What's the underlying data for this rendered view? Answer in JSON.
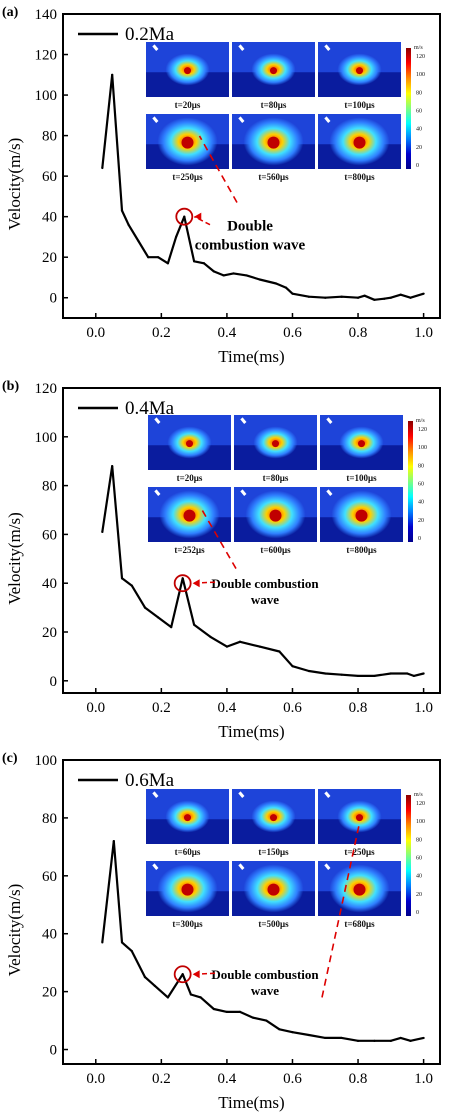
{
  "chart_data": [
    {
      "type": "line",
      "panel_label": "(a)",
      "legend": "0.2Ma",
      "xlabel": "Time(ms)",
      "ylabel": "Velocity(m/s)",
      "xlim": [
        -0.1,
        1.05
      ],
      "ylim": [
        -10,
        140
      ],
      "xticks": [
        0.0,
        0.2,
        0.4,
        0.6,
        0.8,
        1.0
      ],
      "xtick_labels": [
        "0.0",
        "0.2",
        "0.4",
        "0.6",
        "0.8",
        "1.0"
      ],
      "yticks": [
        0,
        20,
        40,
        60,
        80,
        100,
        120,
        140
      ],
      "ytick_labels": [
        "0",
        "20",
        "40",
        "60",
        "80",
        "100",
        "120",
        "140"
      ],
      "series": [
        {
          "name": "0.2Ma",
          "x": [
            0.02,
            0.05,
            0.08,
            0.1,
            0.13,
            0.16,
            0.19,
            0.22,
            0.245,
            0.27,
            0.3,
            0.33,
            0.36,
            0.39,
            0.42,
            0.46,
            0.5,
            0.55,
            0.58,
            0.6,
            0.65,
            0.7,
            0.75,
            0.8,
            0.82,
            0.85,
            0.88,
            0.9,
            0.93,
            0.96,
            1.0
          ],
          "y": [
            64,
            110,
            43,
            36,
            28,
            20,
            20,
            17,
            30,
            40,
            18,
            17,
            13,
            11,
            12,
            11,
            9,
            7,
            5,
            2,
            0.5,
            0,
            0.5,
            0,
            1,
            -1,
            -0.5,
            0,
            1.5,
            0,
            2
          ]
        }
      ],
      "annotation": [
        "Double",
        "combustion wave"
      ],
      "peak_marker": {
        "x": 0.27,
        "y": 40
      },
      "inset": {
        "time_labels": [
          "t=20μs",
          "t=80μs",
          "t=100μs",
          "t=250μs",
          "t=560μs",
          "t=800μs"
        ],
        "colorbar_unit": "m/s",
        "colorbar_ticks": [
          "120",
          "100",
          "80",
          "60",
          "40",
          "20",
          "0"
        ],
        "colorbar_colors": [
          "#8b0000",
          "#ff0000",
          "#ff8c00",
          "#ffff00",
          "#7fff7f",
          "#00ffff",
          "#0080ff",
          "#0000cd",
          "#00008b"
        ]
      }
    },
    {
      "type": "line",
      "panel_label": "(b)",
      "legend": "0.4Ma",
      "xlabel": "Time(ms)",
      "ylabel": "Velocity(m/s)",
      "xlim": [
        -0.1,
        1.05
      ],
      "ylim": [
        -5,
        120
      ],
      "xticks": [
        0.0,
        0.2,
        0.4,
        0.6,
        0.8,
        1.0
      ],
      "xtick_labels": [
        "0.0",
        "0.2",
        "0.4",
        "0.6",
        "0.8",
        "1.0"
      ],
      "yticks": [
        0,
        20,
        40,
        60,
        80,
        100,
        120
      ],
      "ytick_labels": [
        "0",
        "20",
        "40",
        "60",
        "80",
        "100",
        "120"
      ],
      "series": [
        {
          "name": "0.4Ma",
          "x": [
            0.02,
            0.05,
            0.08,
            0.11,
            0.15,
            0.19,
            0.23,
            0.265,
            0.3,
            0.35,
            0.4,
            0.44,
            0.5,
            0.56,
            0.6,
            0.65,
            0.7,
            0.75,
            0.8,
            0.85,
            0.9,
            0.95,
            0.97,
            1.0
          ],
          "y": [
            61,
            88,
            42,
            39,
            30,
            26,
            22,
            42,
            23,
            18,
            14,
            16,
            14,
            12,
            6,
            4,
            3,
            2.5,
            2,
            2,
            3,
            3,
            2,
            3
          ]
        }
      ],
      "annotation": [
        "Double combustion",
        "wave"
      ],
      "peak_marker": {
        "x": 0.265,
        "y": 40
      },
      "inset": {
        "time_labels": [
          "t=20μs",
          "t=80μs",
          "t=100μs",
          "t=252μs",
          "t=600μs",
          "t=800μs"
        ],
        "colorbar_unit": "m/s",
        "colorbar_ticks": [
          "120",
          "100",
          "80",
          "60",
          "40",
          "20",
          "0"
        ],
        "colorbar_colors": [
          "#8b0000",
          "#ff0000",
          "#ff8c00",
          "#ffff00",
          "#7fff7f",
          "#00ffff",
          "#0080ff",
          "#0000cd",
          "#00008b"
        ]
      }
    },
    {
      "type": "line",
      "panel_label": "(c)",
      "legend": "0.6Ma",
      "xlabel": "Time(ms)",
      "ylabel": "Velocity(m/s)",
      "xlim": [
        -0.1,
        1.05
      ],
      "ylim": [
        -5,
        100
      ],
      "xticks": [
        0.0,
        0.2,
        0.4,
        0.6,
        0.8,
        1.0
      ],
      "xtick_labels": [
        "0.0",
        "0.2",
        "0.4",
        "0.6",
        "0.8",
        "1.0"
      ],
      "yticks": [
        0,
        20,
        40,
        60,
        80,
        100
      ],
      "ytick_labels": [
        "0",
        "20",
        "40",
        "60",
        "80",
        "100"
      ],
      "series": [
        {
          "name": "0.6Ma",
          "x": [
            0.02,
            0.055,
            0.08,
            0.11,
            0.15,
            0.18,
            0.22,
            0.265,
            0.29,
            0.32,
            0.36,
            0.4,
            0.44,
            0.48,
            0.52,
            0.56,
            0.6,
            0.65,
            0.7,
            0.75,
            0.8,
            0.85,
            0.9,
            0.93,
            0.96,
            1.0
          ],
          "y": [
            37,
            72,
            37,
            34,
            25,
            22,
            18,
            26,
            19,
            18,
            14,
            13,
            13,
            11,
            10,
            7,
            6,
            5,
            4,
            4,
            3,
            3,
            3,
            4,
            3,
            4
          ]
        }
      ],
      "annotation": [
        "Double combustion",
        "wave"
      ],
      "peak_marker": {
        "x": 0.265,
        "y": 26
      },
      "inset": {
        "time_labels": [
          "t=60μs",
          "t=150μs",
          "t=250μs",
          "t=300μs",
          "t=500μs",
          "t=680μs"
        ],
        "colorbar_unit": "m/s",
        "colorbar_ticks": [
          "120",
          "100",
          "80",
          "60",
          "40",
          "20",
          "0"
        ],
        "colorbar_colors": [
          "#8b0000",
          "#ff0000",
          "#ff8c00",
          "#ffff00",
          "#7fff7f",
          "#00ffff",
          "#0080ff",
          "#0000cd",
          "#00008b"
        ]
      }
    }
  ]
}
